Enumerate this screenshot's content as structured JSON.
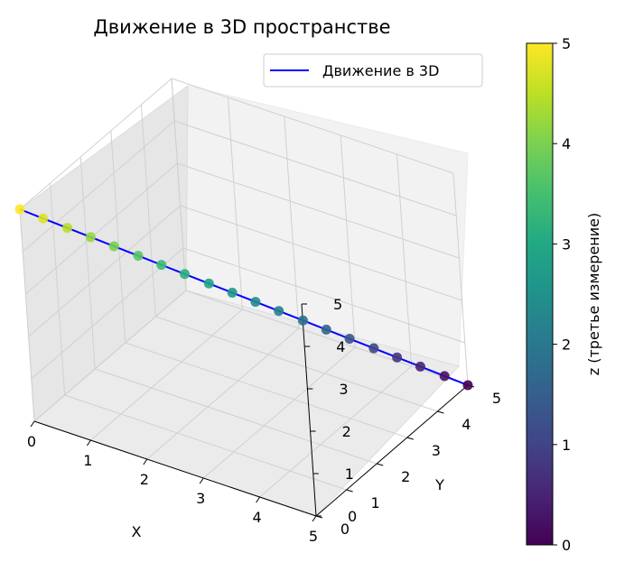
{
  "chart_data": {
    "type": "line3d",
    "title": "Движение в 3D пространстве",
    "xlabel": "X",
    "ylabel": "Y",
    "zlabel": "",
    "xlim": [
      0,
      5
    ],
    "ylim": [
      0,
      5
    ],
    "zlim": [
      0,
      5
    ],
    "xticks": [
      "0",
      "1",
      "2",
      "3",
      "4",
      "5"
    ],
    "yticks": [
      "0",
      "1",
      "2",
      "3",
      "4",
      "5"
    ],
    "zticks": [
      "0",
      "1",
      "2",
      "3",
      "4",
      "5"
    ],
    "series": [
      {
        "name": "Движение в 3D",
        "color": "#0000ff",
        "marker_colormap": "viridis",
        "x": [
          0,
          0.26,
          0.53,
          0.79,
          1.05,
          1.32,
          1.58,
          1.84,
          2.11,
          2.37,
          2.63,
          2.89,
          3.16,
          3.42,
          3.68,
          3.95,
          4.21,
          4.47,
          4.74,
          5
        ],
        "y": [
          0,
          0.26,
          0.53,
          0.79,
          1.05,
          1.32,
          1.58,
          1.84,
          2.11,
          2.37,
          2.63,
          2.89,
          3.16,
          3.42,
          3.68,
          3.95,
          4.21,
          4.47,
          4.74,
          5
        ],
        "z": [
          5,
          4.74,
          4.47,
          4.21,
          3.95,
          3.68,
          3.42,
          3.16,
          2.89,
          2.63,
          2.37,
          2.11,
          1.84,
          1.58,
          1.32,
          1.05,
          0.79,
          0.53,
          0.26,
          0
        ]
      }
    ],
    "legend": {
      "position": "top-right",
      "label": "Движение в 3D"
    },
    "colorbar": {
      "label": "z (третье измерение)",
      "colormap": "viridis",
      "range": [
        0,
        5
      ],
      "ticks": [
        "0",
        "1",
        "2",
        "3",
        "4",
        "5"
      ]
    },
    "grid": true
  }
}
